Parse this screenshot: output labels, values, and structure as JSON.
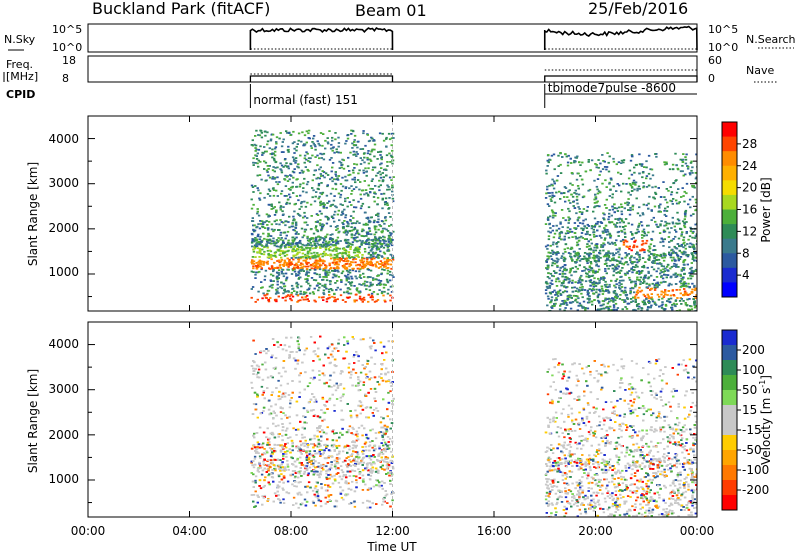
{
  "header": {
    "station_title": "Buckland Park (fitACF)",
    "beam_label": "Beam 01",
    "date_label": "25/Feb/2016"
  },
  "noise_panel": {
    "left_label": "N.Sky",
    "left_ticks": [
      "10^5",
      "10^0"
    ],
    "right_label": "N.Search",
    "right_ticks": [
      "10^5",
      "10^0"
    ]
  },
  "freq_panel": {
    "left_label_line1": "Freq.",
    "left_label_line2": "[MHz]",
    "left_ticks": [
      "18",
      "8"
    ],
    "right_label": "Nave",
    "right_ticks": [
      "60",
      "0"
    ]
  },
  "cpid": {
    "label": "CPID",
    "segments": [
      {
        "name": "normal (fast) 151",
        "start_hour": 6.4,
        "end_hour": 12.0
      },
      {
        "name": "tbjmode7pulse -8600",
        "start_hour": 18.0,
        "end_hour": 24.0
      }
    ]
  },
  "colorbars": {
    "power": {
      "label": "Power [dB]",
      "ticks": [
        "28",
        "24",
        "20",
        "16",
        "12",
        "8",
        "4"
      ],
      "colors": [
        "#ff0000",
        "#ff4500",
        "#ff8c00",
        "#ffb000",
        "#f5dc00",
        "#a8d820",
        "#4caf3a",
        "#2e8b57",
        "#3a7a8c",
        "#2c5aa0",
        "#1a2bd0",
        "#0000ff"
      ]
    },
    "velocity": {
      "label": "Velocity [m s",
      "label_sup": "-1",
      "label_end": "]",
      "ticks": [
        "200",
        "100",
        "50",
        "15",
        "-15",
        "-50",
        "-100",
        "-200"
      ],
      "colors": [
        "#1a2bd0",
        "#2c5aa0",
        "#2e8b57",
        "#4caf3a",
        "#7ed957",
        "#c8c8c8",
        "#c8c8c8",
        "#ffcc00",
        "#ffa500",
        "#ff7800",
        "#ff3c00",
        "#ff0000"
      ]
    }
  },
  "x_axis": {
    "label": "Time UT",
    "ticks": [
      "00:00",
      "04:00",
      "08:00",
      "12:00",
      "16:00",
      "20:00",
      "00:00"
    ]
  },
  "chart_data": [
    {
      "type": "heatmap",
      "name": "Power",
      "ylabel": "Slant Range [km]",
      "yticks": [
        "1000",
        "2000",
        "3000",
        "4000"
      ],
      "xlim_hours": [
        0,
        24
      ],
      "ylim_km": [
        180,
        4500
      ],
      "colorbar_range_db": [
        0,
        32
      ],
      "observed_intervals_hours": [
        [
          6.4,
          12.0
        ],
        [
          18.0,
          24.0
        ]
      ],
      "notable_features": [
        {
          "range_km": 450,
          "hours": [
            6.4,
            12.0
          ],
          "power_db": 30
        },
        {
          "range_km": 1250,
          "hours": [
            6.4,
            12.0
          ],
          "power_db": 28
        },
        {
          "range_km": 1500,
          "hours": [
            6.4,
            11.0
          ],
          "power_db": 18
        },
        {
          "range_km": 1650,
          "hours": [
            21.0,
            22.0
          ],
          "power_db": 30
        },
        {
          "range_km": 600,
          "hours": [
            21.5,
            24.0
          ],
          "power_db": 28
        }
      ]
    },
    {
      "type": "heatmap",
      "name": "Velocity",
      "ylabel": "Slant Range [km]",
      "yticks": [
        "1000",
        "2000",
        "3000",
        "4000"
      ],
      "xlim_hours": [
        0,
        24
      ],
      "ylim_km": [
        180,
        4500
      ],
      "colorbar_range_ms": [
        -250,
        250
      ],
      "observed_intervals_hours": [
        [
          6.4,
          12.0
        ],
        [
          18.0,
          24.0
        ]
      ]
    }
  ]
}
